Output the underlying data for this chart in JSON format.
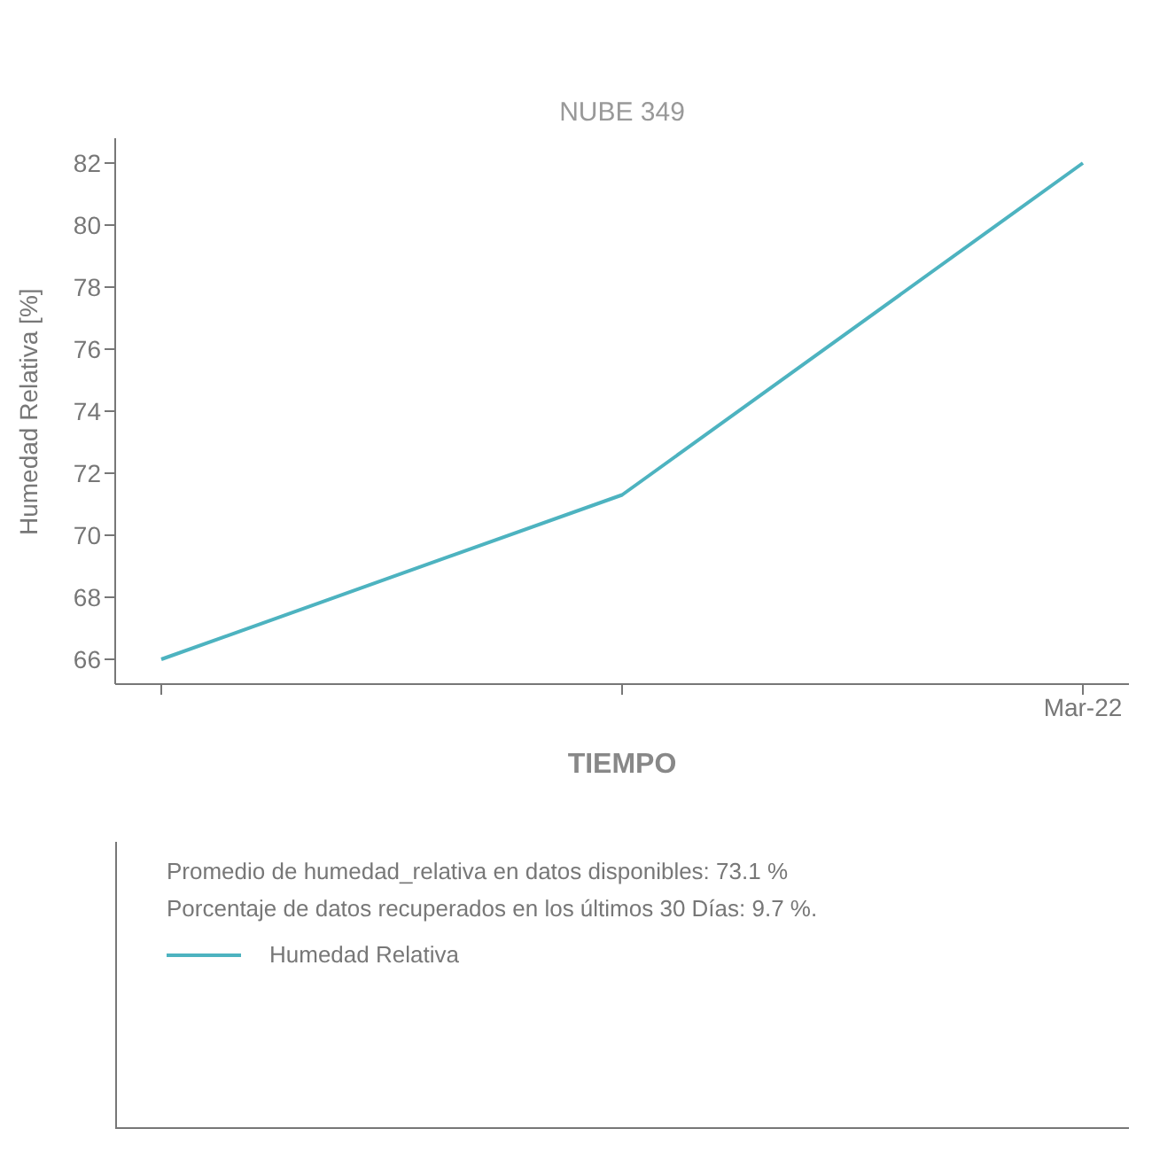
{
  "chart_data": {
    "type": "line",
    "title": "NUBE 349",
    "xlabel": "TIEMPO",
    "ylabel": "Humedad Relativa [%]",
    "categories": [
      null,
      null,
      "Mar-22"
    ],
    "series": [
      {
        "name": "Humedad Relativa",
        "color": "#4db3c0",
        "values": [
          66.0,
          71.3,
          82.0
        ]
      }
    ],
    "ylim": [
      65.2,
      82.8
    ],
    "yticks": [
      66,
      68,
      70,
      72,
      74,
      76,
      78,
      80,
      82
    ],
    "grid": false,
    "legend": "bottom",
    "marker": "none",
    "annotations": [
      "Promedio de humedad_relativa en datos disponibles: 73.1 %",
      "Porcentaje de datos recuperados en los últimos 30 Días: 9.7 %."
    ]
  }
}
